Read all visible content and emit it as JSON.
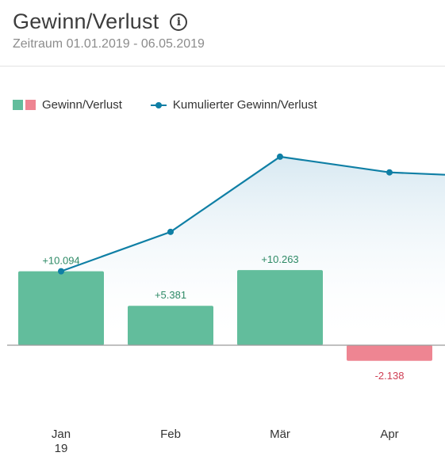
{
  "header": {
    "title": "Gewinn/Verlust",
    "subtitle": "Zeitraum 01.01.2019 - 06.05.2019",
    "info_icon": "info-icon"
  },
  "legend": {
    "bars_label": "Gewinn/Verlust",
    "line_label": "Kumulierter Gewinn/Verlust"
  },
  "colors": {
    "positive": "#62bd9c",
    "negative": "#ee8592",
    "positive_text": "#2e8a66",
    "negative_text": "#cf3f55",
    "line": "#0f7fa5"
  },
  "chart_data": {
    "type": "bar",
    "title": "Gewinn/Verlust",
    "categories": [
      "Jan",
      "Feb",
      "Mär",
      "Apr"
    ],
    "category_sublabels": [
      "19",
      "",
      "",
      ""
    ],
    "series": [
      {
        "name": "Gewinn/Verlust",
        "type": "bar",
        "values": [
          10094,
          5381,
          10263,
          -2138
        ],
        "labels": [
          "+10.094",
          "+5.381",
          "+10.263",
          "-2.138"
        ]
      },
      {
        "name": "Kumulierter Gewinn/Verlust",
        "type": "line",
        "values": [
          10094,
          15475,
          25738,
          23600
        ]
      }
    ],
    "ylim": [
      -8000,
      28000
    ],
    "grid": false,
    "legend_position": "top-left"
  }
}
